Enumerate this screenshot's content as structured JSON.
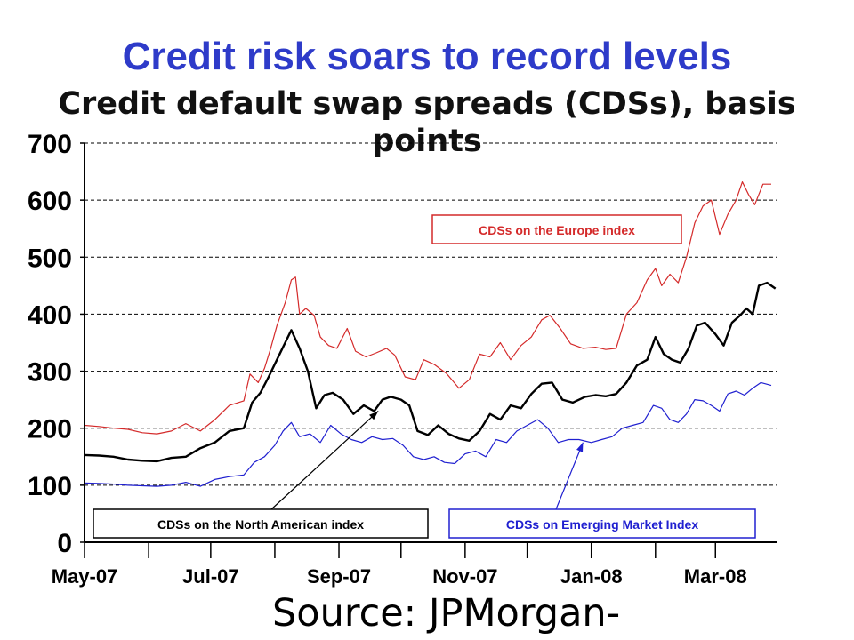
{
  "slide": {
    "title": "Credit risk soars to record levels",
    "subtitle": "Credit default swap spreads (CDSs), basis points",
    "source": "Source: JPMorgan-"
  },
  "chart_data": {
    "type": "line",
    "title": "Credit default swap spreads (CDSs), basis points",
    "xlabel": "",
    "ylabel": "",
    "ylim": [
      0,
      700
    ],
    "xlim": [
      "2007-05-01",
      "2008-03-31"
    ],
    "yticks": [
      0,
      100,
      200,
      300,
      400,
      500,
      600,
      700
    ],
    "xticks": [
      {
        "date": "2007-05-01",
        "label": "May-07"
      },
      {
        "date": "2007-07-01",
        "label": "Jul-07"
      },
      {
        "date": "2007-09-01",
        "label": "Sep-07"
      },
      {
        "date": "2007-11-01",
        "label": "Nov-07"
      },
      {
        "date": "2008-01-01",
        "label": "Jan-08"
      },
      {
        "date": "2008-03-01",
        "label": "Mar-08"
      }
    ],
    "grid": "horizontal dashed",
    "series": [
      {
        "name": "CDSs on the Europe index",
        "color": "#d42a2a",
        "points": [
          [
            "2007-05-01",
            205
          ],
          [
            "2007-05-08",
            203
          ],
          [
            "2007-05-15",
            200
          ],
          [
            "2007-05-22",
            198
          ],
          [
            "2007-05-29",
            192
          ],
          [
            "2007-06-05",
            190
          ],
          [
            "2007-06-12",
            195
          ],
          [
            "2007-06-19",
            208
          ],
          [
            "2007-06-26",
            195
          ],
          [
            "2007-07-03",
            215
          ],
          [
            "2007-07-10",
            240
          ],
          [
            "2007-07-17",
            248
          ],
          [
            "2007-07-20",
            295
          ],
          [
            "2007-07-24",
            280
          ],
          [
            "2007-07-27",
            305
          ],
          [
            "2007-07-30",
            340
          ],
          [
            "2007-08-02",
            380
          ],
          [
            "2007-08-06",
            420
          ],
          [
            "2007-08-09",
            460
          ],
          [
            "2007-08-11",
            465
          ],
          [
            "2007-08-13",
            400
          ],
          [
            "2007-08-16",
            410
          ],
          [
            "2007-08-20",
            398
          ],
          [
            "2007-08-23",
            360
          ],
          [
            "2007-08-27",
            345
          ],
          [
            "2007-08-31",
            340
          ],
          [
            "2007-09-05",
            375
          ],
          [
            "2007-09-09",
            335
          ],
          [
            "2007-09-14",
            325
          ],
          [
            "2007-09-19",
            332
          ],
          [
            "2007-09-24",
            340
          ],
          [
            "2007-09-28",
            328
          ],
          [
            "2007-10-03",
            290
          ],
          [
            "2007-10-08",
            285
          ],
          [
            "2007-10-12",
            320
          ],
          [
            "2007-10-17",
            312
          ],
          [
            "2007-10-23",
            296
          ],
          [
            "2007-10-29",
            270
          ],
          [
            "2007-11-03",
            285
          ],
          [
            "2007-11-08",
            330
          ],
          [
            "2007-11-13",
            325
          ],
          [
            "2007-11-18",
            350
          ],
          [
            "2007-11-23",
            320
          ],
          [
            "2007-11-28",
            345
          ],
          [
            "2007-12-03",
            360
          ],
          [
            "2007-12-08",
            390
          ],
          [
            "2007-12-12",
            398
          ],
          [
            "2007-12-17",
            375
          ],
          [
            "2007-12-22",
            348
          ],
          [
            "2007-12-28",
            340
          ],
          [
            "2008-01-03",
            342
          ],
          [
            "2008-01-08",
            338
          ],
          [
            "2008-01-13",
            340
          ],
          [
            "2008-01-18",
            400
          ],
          [
            "2008-01-23",
            420
          ],
          [
            "2008-01-28",
            460
          ],
          [
            "2008-02-01",
            480
          ],
          [
            "2008-02-04",
            450
          ],
          [
            "2008-02-08",
            470
          ],
          [
            "2008-02-12",
            455
          ],
          [
            "2008-02-16",
            500
          ],
          [
            "2008-02-20",
            560
          ],
          [
            "2008-02-24",
            590
          ],
          [
            "2008-02-28",
            600
          ],
          [
            "2008-03-03",
            540
          ],
          [
            "2008-03-07",
            575
          ],
          [
            "2008-03-11",
            600
          ],
          [
            "2008-03-14",
            632
          ],
          [
            "2008-03-17",
            610
          ],
          [
            "2008-03-20",
            592
          ],
          [
            "2008-03-24",
            628
          ],
          [
            "2008-03-28",
            628
          ]
        ]
      },
      {
        "name": "CDSs on the North American index",
        "color": "#000000",
        "points": [
          [
            "2007-05-01",
            153
          ],
          [
            "2007-05-08",
            152
          ],
          [
            "2007-05-15",
            150
          ],
          [
            "2007-05-22",
            145
          ],
          [
            "2007-05-29",
            143
          ],
          [
            "2007-06-05",
            142
          ],
          [
            "2007-06-12",
            148
          ],
          [
            "2007-06-19",
            150
          ],
          [
            "2007-06-26",
            165
          ],
          [
            "2007-07-03",
            175
          ],
          [
            "2007-07-10",
            195
          ],
          [
            "2007-07-17",
            200
          ],
          [
            "2007-07-21",
            245
          ],
          [
            "2007-07-25",
            262
          ],
          [
            "2007-07-29",
            290
          ],
          [
            "2007-08-02",
            320
          ],
          [
            "2007-08-06",
            350
          ],
          [
            "2007-08-09",
            372
          ],
          [
            "2007-08-13",
            340
          ],
          [
            "2007-08-17",
            300
          ],
          [
            "2007-08-21",
            235
          ],
          [
            "2007-08-25",
            258
          ],
          [
            "2007-08-29",
            262
          ],
          [
            "2007-09-03",
            250
          ],
          [
            "2007-09-08",
            225
          ],
          [
            "2007-09-13",
            240
          ],
          [
            "2007-09-18",
            230
          ],
          [
            "2007-09-22",
            250
          ],
          [
            "2007-09-26",
            255
          ],
          [
            "2007-10-01",
            250
          ],
          [
            "2007-10-05",
            240
          ],
          [
            "2007-10-09",
            195
          ],
          [
            "2007-10-14",
            188
          ],
          [
            "2007-10-19",
            205
          ],
          [
            "2007-10-24",
            190
          ],
          [
            "2007-10-29",
            182
          ],
          [
            "2007-11-03",
            178
          ],
          [
            "2007-11-08",
            195
          ],
          [
            "2007-11-13",
            225
          ],
          [
            "2007-11-18",
            215
          ],
          [
            "2007-11-23",
            240
          ],
          [
            "2007-11-28",
            235
          ],
          [
            "2007-12-03",
            260
          ],
          [
            "2007-12-08",
            278
          ],
          [
            "2007-12-13",
            280
          ],
          [
            "2007-12-18",
            250
          ],
          [
            "2007-12-23",
            245
          ],
          [
            "2007-12-29",
            255
          ],
          [
            "2008-01-03",
            258
          ],
          [
            "2008-01-08",
            256
          ],
          [
            "2008-01-13",
            260
          ],
          [
            "2008-01-18",
            280
          ],
          [
            "2008-01-23",
            310
          ],
          [
            "2008-01-28",
            320
          ],
          [
            "2008-02-01",
            360
          ],
          [
            "2008-02-05",
            330
          ],
          [
            "2008-02-09",
            320
          ],
          [
            "2008-02-13",
            315
          ],
          [
            "2008-02-17",
            340
          ],
          [
            "2008-02-21",
            380
          ],
          [
            "2008-02-25",
            385
          ],
          [
            "2008-03-01",
            365
          ],
          [
            "2008-03-05",
            345
          ],
          [
            "2008-03-09",
            385
          ],
          [
            "2008-03-13",
            398
          ],
          [
            "2008-03-16",
            410
          ],
          [
            "2008-03-19",
            400
          ],
          [
            "2008-03-22",
            450
          ],
          [
            "2008-03-26",
            455
          ],
          [
            "2008-03-30",
            445
          ]
        ]
      },
      {
        "name": "CDSs on Emerging Market Index",
        "color": "#2020d0",
        "points": [
          [
            "2007-05-01",
            104
          ],
          [
            "2007-05-08",
            103
          ],
          [
            "2007-05-15",
            102
          ],
          [
            "2007-05-22",
            100
          ],
          [
            "2007-05-29",
            99
          ],
          [
            "2007-06-05",
            98
          ],
          [
            "2007-06-12",
            100
          ],
          [
            "2007-06-19",
            105
          ],
          [
            "2007-06-26",
            98
          ],
          [
            "2007-07-03",
            110
          ],
          [
            "2007-07-10",
            115
          ],
          [
            "2007-07-17",
            118
          ],
          [
            "2007-07-22",
            140
          ],
          [
            "2007-07-27",
            150
          ],
          [
            "2007-08-01",
            170
          ],
          [
            "2007-08-05",
            195
          ],
          [
            "2007-08-09",
            210
          ],
          [
            "2007-08-13",
            185
          ],
          [
            "2007-08-18",
            190
          ],
          [
            "2007-08-23",
            175
          ],
          [
            "2007-08-28",
            205
          ],
          [
            "2007-09-02",
            190
          ],
          [
            "2007-09-07",
            180
          ],
          [
            "2007-09-12",
            175
          ],
          [
            "2007-09-17",
            185
          ],
          [
            "2007-09-22",
            180
          ],
          [
            "2007-09-27",
            182
          ],
          [
            "2007-10-02",
            170
          ],
          [
            "2007-10-07",
            150
          ],
          [
            "2007-10-12",
            145
          ],
          [
            "2007-10-17",
            150
          ],
          [
            "2007-10-22",
            140
          ],
          [
            "2007-10-27",
            138
          ],
          [
            "2007-11-01",
            155
          ],
          [
            "2007-11-06",
            160
          ],
          [
            "2007-11-11",
            150
          ],
          [
            "2007-11-16",
            180
          ],
          [
            "2007-11-21",
            175
          ],
          [
            "2007-11-26",
            195
          ],
          [
            "2007-12-01",
            205
          ],
          [
            "2007-12-06",
            215
          ],
          [
            "2007-12-11",
            200
          ],
          [
            "2007-12-16",
            175
          ],
          [
            "2007-12-21",
            180
          ],
          [
            "2007-12-26",
            180
          ],
          [
            "2008-01-01",
            175
          ],
          [
            "2008-01-06",
            180
          ],
          [
            "2008-01-11",
            185
          ],
          [
            "2008-01-16",
            200
          ],
          [
            "2008-01-21",
            205
          ],
          [
            "2008-01-26",
            210
          ],
          [
            "2008-01-31",
            240
          ],
          [
            "2008-02-04",
            235
          ],
          [
            "2008-02-08",
            215
          ],
          [
            "2008-02-12",
            210
          ],
          [
            "2008-02-16",
            225
          ],
          [
            "2008-02-20",
            250
          ],
          [
            "2008-02-24",
            248
          ],
          [
            "2008-02-28",
            240
          ],
          [
            "2008-03-03",
            230
          ],
          [
            "2008-03-07",
            260
          ],
          [
            "2008-03-11",
            265
          ],
          [
            "2008-03-15",
            258
          ],
          [
            "2008-03-19",
            270
          ],
          [
            "2008-03-23",
            280
          ],
          [
            "2008-03-28",
            275
          ]
        ]
      }
    ],
    "annotations": [
      {
        "text": "CDSs on the Europe index",
        "color": "#d42a2a",
        "border": "#d42a2a",
        "pointer": false
      },
      {
        "text": "CDSs on the North American index",
        "color": "#000000",
        "border": "#000000",
        "pointer": true,
        "points_to": [
          "2007-09-20",
          230
        ]
      },
      {
        "text": "CDSs on Emerging Market Index",
        "color": "#2020d0",
        "border": "#2020d0",
        "pointer": true,
        "points_to": [
          "2007-12-28",
          175
        ]
      }
    ]
  }
}
